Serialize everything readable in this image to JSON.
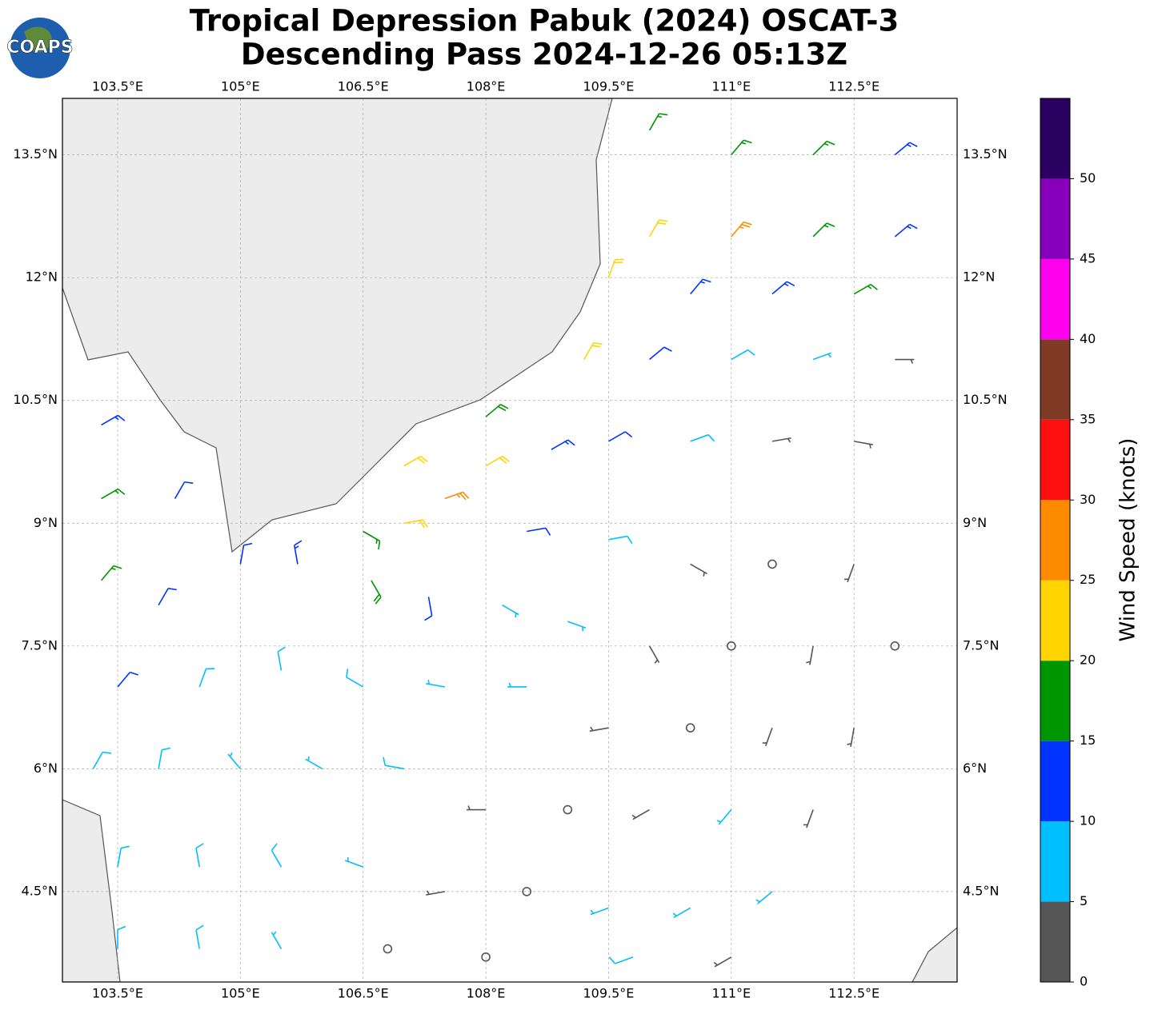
{
  "header": {
    "title_line1": "Tropical Depression Pabuk (2024) OSCAT-3",
    "title_line2": "Descending Pass 2024-12-26 05:13Z",
    "logo_text": "COAPS"
  },
  "map": {
    "xlim": [
      102.825,
      113.76
    ],
    "ylim": [
      3.395,
      14.19
    ],
    "grid": true,
    "xticks": [
      {
        "value": 103.5,
        "label": "103.5°E"
      },
      {
        "value": 105,
        "label": "105°E"
      },
      {
        "value": 106.5,
        "label": "106.5°E"
      },
      {
        "value": 108,
        "label": "108°E"
      },
      {
        "value": 109.5,
        "label": "109.5°E"
      },
      {
        "value": 111,
        "label": "111°E"
      },
      {
        "value": 112.5,
        "label": "112.5°E"
      }
    ],
    "yticks": [
      {
        "value": 13.5,
        "label": "13.5°N"
      },
      {
        "value": 12,
        "label": "12°N"
      },
      {
        "value": 10.5,
        "label": "10.5°N"
      },
      {
        "value": 9,
        "label": "9°N"
      },
      {
        "value": 7.5,
        "label": "7.5°N"
      },
      {
        "value": 6,
        "label": "6°N"
      },
      {
        "value": 4.5,
        "label": "4.5°N"
      }
    ],
    "barbs": [
      {
        "lon": 110,
        "lat": 13.8,
        "speed": 17,
        "direction": 30
      },
      {
        "lon": 111,
        "lat": 13.5,
        "speed": 17,
        "direction": 40
      },
      {
        "lon": 112,
        "lat": 13.5,
        "speed": 17,
        "direction": 45
      },
      {
        "lon": 113,
        "lat": 13.5,
        "speed": 14,
        "direction": 50
      },
      {
        "lon": 110,
        "lat": 12.5,
        "speed": 21,
        "direction": 30
      },
      {
        "lon": 111,
        "lat": 12.5,
        "speed": 26,
        "direction": 40
      },
      {
        "lon": 112,
        "lat": 12.5,
        "speed": 17,
        "direction": 45
      },
      {
        "lon": 113,
        "lat": 12.5,
        "speed": 14,
        "direction": 50
      },
      {
        "lon": 109.5,
        "lat": 12,
        "speed": 22,
        "direction": 20
      },
      {
        "lon": 110.5,
        "lat": 11.8,
        "speed": 13,
        "direction": 40
      },
      {
        "lon": 111.5,
        "lat": 11.8,
        "speed": 14,
        "direction": 50
      },
      {
        "lon": 112.5,
        "lat": 11.8,
        "speed": 17,
        "direction": 60
      },
      {
        "lon": 109.2,
        "lat": 11,
        "speed": 22,
        "direction": 30
      },
      {
        "lon": 110,
        "lat": 11,
        "speed": 12,
        "direction": 50
      },
      {
        "lon": 111,
        "lat": 11,
        "speed": 8,
        "direction": 60
      },
      {
        "lon": 112,
        "lat": 11,
        "speed": 7,
        "direction": 70
      },
      {
        "lon": 113,
        "lat": 11,
        "speed": 4,
        "direction": 90
      },
      {
        "lon": 108,
        "lat": 10.3,
        "speed": 18,
        "direction": 50
      },
      {
        "lon": 108,
        "lat": 9.7,
        "speed": 21,
        "direction": 60
      },
      {
        "lon": 107,
        "lat": 9.7,
        "speed": 22,
        "direction": 60
      },
      {
        "lon": 108.8,
        "lat": 9.9,
        "speed": 14,
        "direction": 60
      },
      {
        "lon": 109.5,
        "lat": 10,
        "speed": 12,
        "direction": 60
      },
      {
        "lon": 110.5,
        "lat": 10,
        "speed": 8,
        "direction": 70
      },
      {
        "lon": 111.5,
        "lat": 10,
        "speed": 4,
        "direction": 80
      },
      {
        "lon": 112.5,
        "lat": 10,
        "speed": 3,
        "direction": 100
      },
      {
        "lon": 107,
        "lat": 9,
        "speed": 22,
        "direction": 80
      },
      {
        "lon": 106.5,
        "lat": 8.9,
        "speed": 17,
        "direction": 120
      },
      {
        "lon": 107.5,
        "lat": 9.3,
        "speed": 27,
        "direction": 70
      },
      {
        "lon": 108.5,
        "lat": 8.9,
        "speed": 12,
        "direction": 80
      },
      {
        "lon": 109.5,
        "lat": 8.8,
        "speed": 8,
        "direction": 80
      },
      {
        "lon": 110.5,
        "lat": 8.5,
        "speed": 3,
        "direction": 120
      },
      {
        "lon": 111.5,
        "lat": 8.5,
        "speed": 2,
        "direction": 0
      },
      {
        "lon": 112.5,
        "lat": 8.5,
        "speed": 4,
        "direction": 200
      },
      {
        "lon": 106.6,
        "lat": 8.3,
        "speed": 18,
        "direction": 150
      },
      {
        "lon": 107.3,
        "lat": 8.1,
        "speed": 12,
        "direction": 170
      },
      {
        "lon": 108.2,
        "lat": 8,
        "speed": 7,
        "direction": 120
      },
      {
        "lon": 109,
        "lat": 7.8,
        "speed": 6,
        "direction": 110
      },
      {
        "lon": 110,
        "lat": 7.5,
        "speed": 3,
        "direction": 150
      },
      {
        "lon": 111,
        "lat": 7.5,
        "speed": 2,
        "direction": 0
      },
      {
        "lon": 112,
        "lat": 7.5,
        "speed": 3,
        "direction": 190
      },
      {
        "lon": 113,
        "lat": 7.5,
        "speed": 2,
        "direction": 0
      },
      {
        "lon": 103.3,
        "lat": 10.2,
        "speed": 13,
        "direction": 60
      },
      {
        "lon": 103.3,
        "lat": 9.3,
        "speed": 17,
        "direction": 60
      },
      {
        "lon": 104.2,
        "lat": 9.3,
        "speed": 12,
        "direction": 30
      },
      {
        "lon": 103.3,
        "lat": 8.3,
        "speed": 15,
        "direction": 40
      },
      {
        "lon": 104,
        "lat": 8,
        "speed": 12,
        "direction": 30
      },
      {
        "lon": 105,
        "lat": 8.5,
        "speed": 12,
        "direction": 10
      },
      {
        "lon": 105.7,
        "lat": 8.5,
        "speed": 13,
        "direction": 350
      },
      {
        "lon": 103.5,
        "lat": 7,
        "speed": 10,
        "direction": 40
      },
      {
        "lon": 104.5,
        "lat": 7,
        "speed": 8,
        "direction": 20
      },
      {
        "lon": 105.5,
        "lat": 7.2,
        "speed": 9,
        "direction": 350
      },
      {
        "lon": 106.5,
        "lat": 7,
        "speed": 9,
        "direction": 300
      },
      {
        "lon": 107.5,
        "lat": 7,
        "speed": 7,
        "direction": 280
      },
      {
        "lon": 108.5,
        "lat": 7,
        "speed": 6,
        "direction": 270
      },
      {
        "lon": 109.5,
        "lat": 6.5,
        "speed": 4,
        "direction": 260
      },
      {
        "lon": 110.5,
        "lat": 6.5,
        "speed": 2,
        "direction": 0
      },
      {
        "lon": 111.5,
        "lat": 6.5,
        "speed": 3,
        "direction": 200
      },
      {
        "lon": 112.5,
        "lat": 6.5,
        "speed": 3,
        "direction": 190
      },
      {
        "lon": 103.2,
        "lat": 6,
        "speed": 8,
        "direction": 30
      },
      {
        "lon": 104,
        "lat": 6,
        "speed": 9,
        "direction": 10
      },
      {
        "lon": 105,
        "lat": 6,
        "speed": 7,
        "direction": 320
      },
      {
        "lon": 106,
        "lat": 6,
        "speed": 7,
        "direction": 300
      },
      {
        "lon": 107,
        "lat": 6,
        "speed": 8,
        "direction": 280
      },
      {
        "lon": 108,
        "lat": 5.5,
        "speed": 4,
        "direction": 270
      },
      {
        "lon": 109,
        "lat": 5.5,
        "speed": 2,
        "direction": 0
      },
      {
        "lon": 110,
        "lat": 5.5,
        "speed": 3,
        "direction": 240
      },
      {
        "lon": 111,
        "lat": 5.5,
        "speed": 7,
        "direction": 220
      },
      {
        "lon": 112,
        "lat": 5.5,
        "speed": 4,
        "direction": 200
      },
      {
        "lon": 103.5,
        "lat": 4.8,
        "speed": 8,
        "direction": 10
      },
      {
        "lon": 104.5,
        "lat": 4.8,
        "speed": 9,
        "direction": 350
      },
      {
        "lon": 105.5,
        "lat": 4.8,
        "speed": 9,
        "direction": 330
      },
      {
        "lon": 106.5,
        "lat": 4.8,
        "speed": 6,
        "direction": 290
      },
      {
        "lon": 107.5,
        "lat": 4.5,
        "speed": 3,
        "direction": 260
      },
      {
        "lon": 108.5,
        "lat": 4.5,
        "speed": 2,
        "direction": 0
      },
      {
        "lon": 109.5,
        "lat": 4.3,
        "speed": 7,
        "direction": 250
      },
      {
        "lon": 110.5,
        "lat": 4.3,
        "speed": 5,
        "direction": 240
      },
      {
        "lon": 111.5,
        "lat": 4.5,
        "speed": 6,
        "direction": 230
      },
      {
        "lon": 103.5,
        "lat": 3.8,
        "speed": 8,
        "direction": 0
      },
      {
        "lon": 104.5,
        "lat": 3.8,
        "speed": 9,
        "direction": 350
      },
      {
        "lon": 105.5,
        "lat": 3.8,
        "speed": 6,
        "direction": 330
      },
      {
        "lon": 106.8,
        "lat": 3.8,
        "speed": 2,
        "direction": 0
      },
      {
        "lon": 108,
        "lat": 3.7,
        "speed": 2,
        "direction": 0
      },
      {
        "lon": 109.8,
        "lat": 3.7,
        "speed": 8,
        "direction": 250
      },
      {
        "lon": 111,
        "lat": 3.7,
        "speed": 4,
        "direction": 240
      }
    ]
  },
  "colorbar": {
    "label": "Wind Speed (knots)",
    "lim": [
      0,
      55
    ],
    "bounds": [
      0,
      5,
      10,
      15,
      20,
      25,
      30,
      35,
      40,
      45,
      50,
      55
    ],
    "colors": [
      "#555555",
      "#00bfff",
      "#0033ff",
      "#009600",
      "#ffd400",
      "#ff8c00",
      "#ff1010",
      "#7f3a26",
      "#ff00ee",
      "#8800bb",
      "#2a0060"
    ],
    "ticks": [
      0,
      5,
      10,
      15,
      20,
      25,
      30,
      35,
      40,
      45,
      50
    ]
  }
}
